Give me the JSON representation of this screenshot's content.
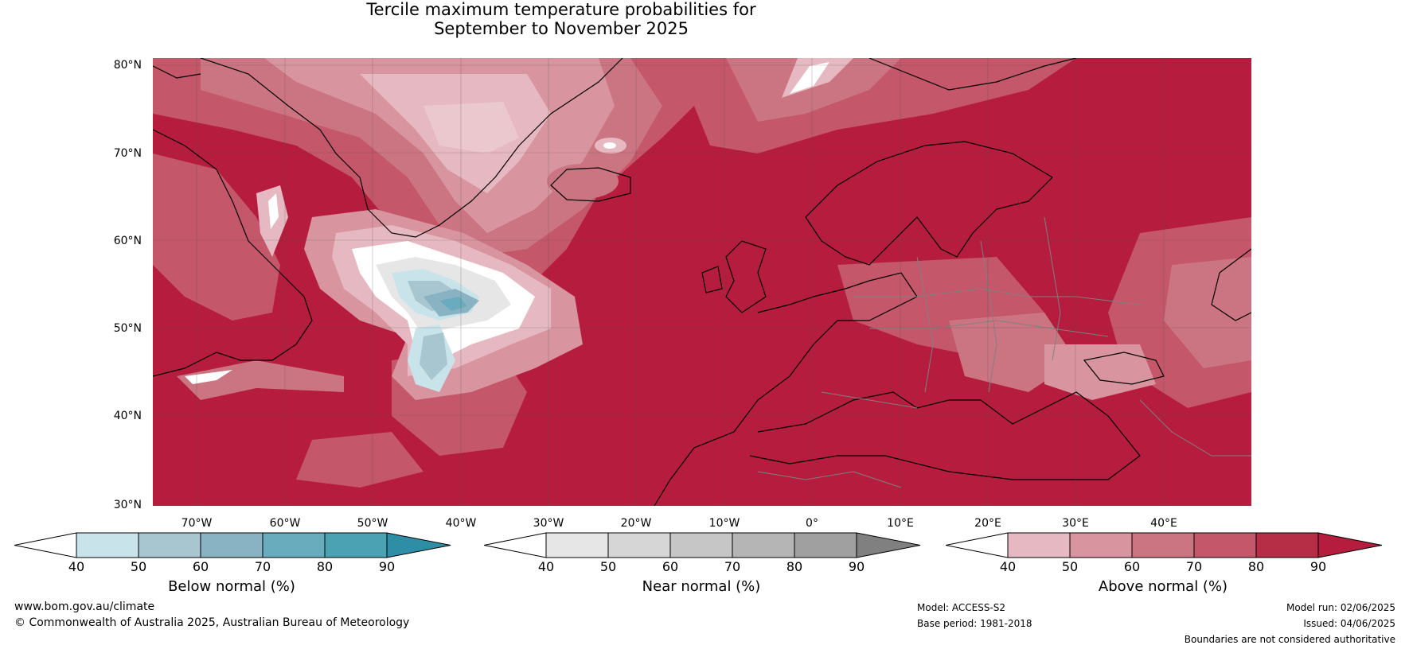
{
  "title": {
    "line1": "Tercile maximum temperature probabilities for",
    "line2": "September to November 2025"
  },
  "map": {
    "lat_labels": [
      "80°N",
      "70°N",
      "60°N",
      "50°N",
      "40°N",
      "30°N"
    ],
    "lon_labels": [
      "70°W",
      "60°W",
      "50°W",
      "40°W",
      "30°W",
      "20°W",
      "10°W",
      "0°",
      "10°E",
      "20°E",
      "30°E",
      "40°E"
    ],
    "colors": {
      "above_normal_base": "#b51c3d",
      "land_outline": "#000000",
      "border_outline": "#808080"
    }
  },
  "colorbars": [
    {
      "title": "Below normal (%)",
      "ticks": [
        "40",
        "50",
        "60",
        "70",
        "80",
        "90"
      ],
      "colors": [
        "#ffffff",
        "#c9e3ea",
        "#a7c6cf",
        "#89b3c2",
        "#69acbd",
        "#4aa2b3",
        "#2e8ea5"
      ]
    },
    {
      "title": "Near normal (%)",
      "ticks": [
        "40",
        "50",
        "60",
        "70",
        "80",
        "90"
      ],
      "colors": [
        "#ffffff",
        "#e6e6e6",
        "#d6d6d6",
        "#c6c6c6",
        "#b5b5b5",
        "#a0a0a0",
        "#808080"
      ]
    },
    {
      "title": "Above normal (%)",
      "ticks": [
        "40",
        "50",
        "60",
        "70",
        "80",
        "90"
      ],
      "colors": [
        "#ffffff",
        "#e6b9c2",
        "#d9959f",
        "#cc7582",
        "#c45769",
        "#b62d46",
        "#b51c3d"
      ]
    }
  ],
  "footer": {
    "website": "www.bom.gov.au/climate",
    "copyright": "© Commonwealth of Australia 2025, Australian Bureau of Meteorology",
    "model": "Model: ACCESS-S2",
    "base_period": "Base period: 1981-2018",
    "model_run": "Model run: 02/06/2025",
    "issued": "Issued: 04/06/2025",
    "disclaimer": "Boundaries are not considered authoritative"
  }
}
